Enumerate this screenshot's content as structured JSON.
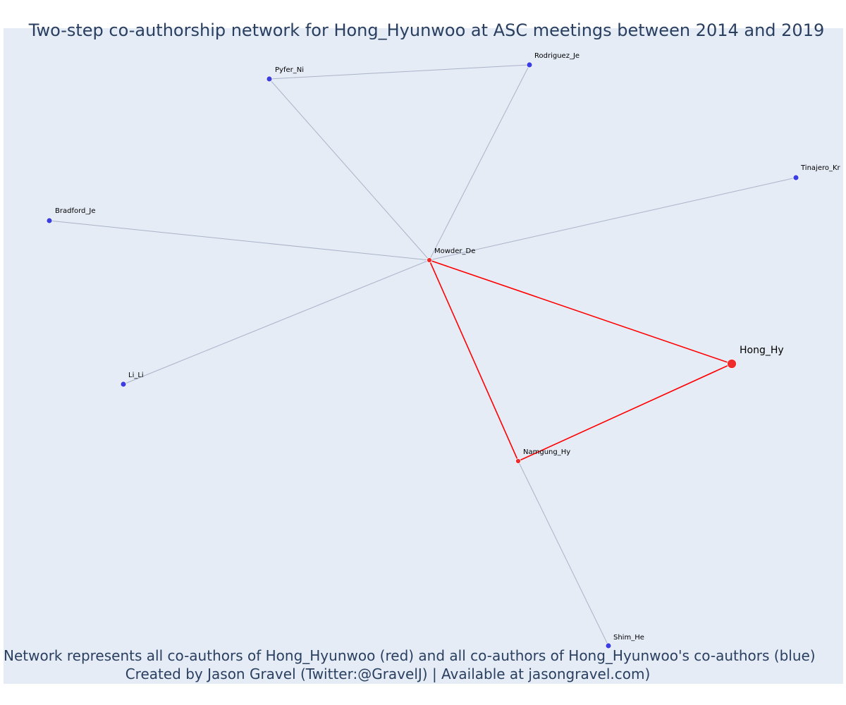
{
  "title": "Two-step co-authorship network for Hong_Hyunwoo at ASC meetings between 2014 and 2019",
  "footer": {
    "line1": "Network represents all co-authors of Hong_Hyunwoo (red) and all co-authors of Hong_Hyunwoo's co-authors (blue)",
    "line2": "Created by Jason Gravel (Twitter:@GravelJ) | Available at jasongravel.com)"
  },
  "colors": {
    "background": "#e5ecf6",
    "first_step": "#ef2b2b",
    "second_step": "#3b3fe0",
    "first_step_edge": "#ff0000",
    "second_step_edge": "#aab3c8",
    "text": "#2a3f5f"
  },
  "nodes": [
    {
      "id": "Hong_Hy",
      "label": "Hong_Hy",
      "group": "focal"
    },
    {
      "id": "Mowder_De",
      "label": "Mowder_De",
      "group": "coauthor"
    },
    {
      "id": "Namgung_Hy",
      "label": "Namgung_Hy",
      "group": "coauthor"
    },
    {
      "id": "Pyfer_Ni",
      "label": "Pyfer_Ni",
      "group": "second"
    },
    {
      "id": "Rodriguez_Je",
      "label": "Rodriguez_Je",
      "group": "second"
    },
    {
      "id": "Tinajero_Kr",
      "label": "Tinajero_Kr",
      "group": "second"
    },
    {
      "id": "Bradford_Je",
      "label": "Bradford_Je",
      "group": "second"
    },
    {
      "id": "Li_Li",
      "label": "Li_Li",
      "group": "second"
    },
    {
      "id": "Shim_He",
      "label": "Shim_He",
      "group": "second"
    }
  ],
  "edges": [
    {
      "source": "Hong_Hy",
      "target": "Mowder_De",
      "type": "first"
    },
    {
      "source": "Hong_Hy",
      "target": "Namgung_Hy",
      "type": "first"
    },
    {
      "source": "Mowder_De",
      "target": "Namgung_Hy",
      "type": "first"
    },
    {
      "source": "Mowder_De",
      "target": "Pyfer_Ni",
      "type": "second"
    },
    {
      "source": "Mowder_De",
      "target": "Rodriguez_Je",
      "type": "second"
    },
    {
      "source": "Mowder_De",
      "target": "Tinajero_Kr",
      "type": "second"
    },
    {
      "source": "Mowder_De",
      "target": "Bradford_Je",
      "type": "second"
    },
    {
      "source": "Mowder_De",
      "target": "Li_Li",
      "type": "second"
    },
    {
      "source": "Pyfer_Ni",
      "target": "Rodriguez_Je",
      "type": "second"
    },
    {
      "source": "Namgung_Hy",
      "target": "Shim_He",
      "type": "second"
    }
  ]
}
